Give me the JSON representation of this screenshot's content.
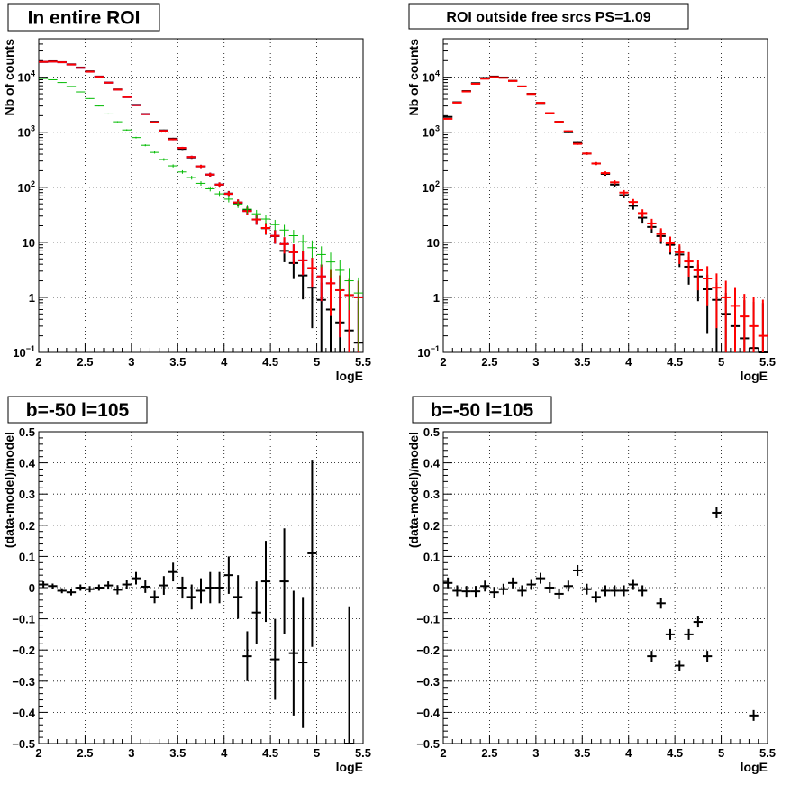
{
  "colors": {
    "data": "#000000",
    "model": "#ff0000",
    "model_blue": "#0000cc",
    "component": "#00bb00",
    "grid": "#000000",
    "background": "#ffffff"
  },
  "chart_data": [
    {
      "type": "scatter",
      "title": "In entire ROI",
      "xlabel": "logE",
      "ylabel": "Nb of counts",
      "xlim": [
        2,
        5.5
      ],
      "ylim": [
        0.1,
        50000
      ],
      "yscale": "log",
      "grid": true,
      "x_ticks": [
        "2",
        "2.5",
        "3",
        "3.5",
        "4",
        "4.5",
        "5",
        "5.5"
      ],
      "y_ticks": [
        "10⁻¹",
        "1",
        "10",
        "10²",
        "10³",
        "10⁴"
      ],
      "series": [
        {
          "role": "data",
          "color": "#000000",
          "x": [
            2.05,
            2.15,
            2.25,
            2.35,
            2.45,
            2.55,
            2.65,
            2.75,
            2.85,
            2.95,
            3.05,
            3.15,
            3.25,
            3.35,
            3.45,
            3.55,
            3.65,
            3.75,
            3.85,
            3.95,
            4.05,
            4.15,
            4.25,
            4.35,
            4.45,
            4.55,
            4.65,
            4.75,
            4.85,
            4.95,
            5.05,
            5.15,
            5.25,
            5.35,
            5.45
          ],
          "y": [
            19000,
            19500,
            18800,
            17200,
            15000,
            12800,
            10300,
            8000,
            6000,
            4400,
            3150,
            2150,
            1550,
            1080,
            765,
            500,
            348,
            240,
            170,
            112,
            77,
            52,
            38,
            26,
            18,
            13,
            7,
            4.2,
            2.5,
            1.5,
            0.9,
            0.6,
            0.35,
            0.25,
            0.15
          ]
        },
        {
          "role": "model_blue",
          "color": "#0000cc",
          "x": [
            2.05,
            2.15,
            2.25,
            2.35,
            2.45,
            2.55,
            2.65,
            2.75,
            2.85,
            2.95,
            3.05,
            3.15,
            3.25,
            3.35,
            3.45,
            3.55,
            3.65,
            3.75,
            3.85,
            3.95,
            4.05,
            4.15,
            4.25,
            4.35,
            4.45,
            4.55,
            4.65,
            4.75,
            4.85,
            4.95,
            5.05,
            5.15,
            5.25,
            5.35,
            5.45
          ],
          "y": [
            19000,
            19200,
            18700,
            17000,
            14800,
            12600,
            10200,
            7950,
            5950,
            4350,
            3100,
            2130,
            1520,
            1060,
            745,
            520,
            355,
            240,
            170,
            112,
            76,
            53,
            37,
            26,
            18.2,
            13.1,
            9.3,
            6.6,
            4.7,
            3.4,
            2.4,
            1.8,
            1.35,
            1.1,
            1.0
          ]
        },
        {
          "role": "model",
          "color": "#ff0000",
          "x": [
            2.05,
            2.15,
            2.25,
            2.35,
            2.45,
            2.55,
            2.65,
            2.75,
            2.85,
            2.95,
            3.05,
            3.15,
            3.25,
            3.35,
            3.45,
            3.55,
            3.65,
            3.75,
            3.85,
            3.95,
            4.05,
            4.15,
            4.25,
            4.35,
            4.45,
            4.55,
            4.65,
            4.75,
            4.85,
            4.95,
            5.05,
            5.15,
            5.25,
            5.35,
            5.45
          ],
          "y": [
            19000,
            19200,
            18700,
            17000,
            14800,
            12600,
            10200,
            7950,
            5950,
            4350,
            3100,
            2130,
            1520,
            1060,
            745,
            520,
            355,
            240,
            170,
            112,
            76,
            53,
            37,
            26,
            18.2,
            13.1,
            9.3,
            6.6,
            4.7,
            3.4,
            2.4,
            1.8,
            1.35,
            1.1,
            1.0
          ]
        },
        {
          "role": "component",
          "color": "#00bb00",
          "x": [
            2.05,
            2.15,
            2.25,
            2.35,
            2.45,
            2.55,
            2.65,
            2.75,
            2.85,
            2.95,
            3.05,
            3.15,
            3.25,
            3.35,
            3.45,
            3.55,
            3.65,
            3.75,
            3.85,
            3.95,
            4.05,
            4.15,
            4.25,
            4.35,
            4.45,
            4.55,
            4.65,
            4.75,
            4.85,
            4.95,
            5.05,
            5.15,
            5.25,
            5.35,
            5.45
          ],
          "y": [
            9500,
            9000,
            8000,
            6800,
            5400,
            4100,
            3000,
            2150,
            1550,
            1100,
            800,
            580,
            430,
            320,
            245,
            190,
            150,
            118,
            94,
            76,
            61,
            49,
            40,
            33,
            26.5,
            21,
            16.7,
            13.2,
            10.3,
            8,
            6,
            4.4,
            3.1,
            2,
            1.2
          ]
        }
      ]
    },
    {
      "type": "scatter",
      "title": "ROI outside free srcs PS=1.09",
      "xlabel": "logE",
      "ylabel": "Nb of counts",
      "xlim": [
        2,
        5.5
      ],
      "ylim": [
        0.1,
        50000
      ],
      "yscale": "log",
      "grid": true,
      "x_ticks": [
        "2",
        "2.5",
        "3",
        "3.5",
        "4",
        "4.5",
        "5",
        "5.5"
      ],
      "y_ticks": [
        "10⁻¹",
        "1",
        "10",
        "10²",
        "10³",
        "10⁴"
      ],
      "series": [
        {
          "role": "data",
          "color": "#000000",
          "x": [
            2.05,
            2.15,
            2.25,
            2.35,
            2.45,
            2.55,
            2.65,
            2.75,
            2.85,
            2.95,
            3.05,
            3.15,
            3.25,
            3.35,
            3.45,
            3.55,
            3.65,
            3.75,
            3.85,
            3.95,
            4.05,
            4.15,
            4.25,
            4.35,
            4.45,
            4.55,
            4.65,
            4.75,
            4.85,
            4.95,
            5.05,
            5.15,
            5.25,
            5.35,
            5.45
          ],
          "y": [
            1900,
            3500,
            5600,
            7800,
            9700,
            10300,
            9900,
            8600,
            6800,
            5000,
            3400,
            2200,
            1550,
            1000,
            640,
            410,
            270,
            175,
            112,
            72,
            46,
            28,
            19,
            13,
            9,
            6,
            3.6,
            2.4,
            1.4,
            0.9,
            0.5,
            0.3,
            0.18,
            0.12,
            0.08
          ]
        },
        {
          "role": "model",
          "color": "#ff0000",
          "x": [
            2.05,
            2.15,
            2.25,
            2.35,
            2.45,
            2.55,
            2.65,
            2.75,
            2.85,
            2.95,
            3.05,
            3.15,
            3.25,
            3.35,
            3.45,
            3.55,
            3.65,
            3.75,
            3.85,
            3.95,
            4.05,
            4.15,
            4.25,
            4.35,
            4.45,
            4.55,
            4.65,
            4.75,
            4.85,
            4.95,
            5.05,
            5.15,
            5.25,
            5.35,
            5.45
          ],
          "y": [
            1750,
            3450,
            5500,
            7600,
            9400,
            10100,
            9750,
            8550,
            6800,
            4970,
            3420,
            2230,
            1550,
            1045,
            615,
            410,
            270,
            181,
            123,
            80,
            54,
            34,
            22,
            14.2,
            9.6,
            6.6,
            4.5,
            3.1,
            2.2,
            1.5,
            1.0,
            0.7,
            0.45,
            0.3,
            0.2
          ]
        }
      ]
    },
    {
      "type": "scatter",
      "title": "b=-50 l=105",
      "xlabel": "logE",
      "ylabel": "(data-model)/model",
      "xlim": [
        2,
        5.5
      ],
      "ylim": [
        -0.5,
        0.5
      ],
      "grid": true,
      "x_ticks": [
        "2",
        "2.5",
        "3",
        "3.5",
        "4",
        "4.5",
        "5",
        "5.5"
      ],
      "y_ticks": [
        "−0.5",
        "−0.4",
        "−0.3",
        "−0.2",
        "−0.1",
        "0",
        "0.1",
        "0.2",
        "0.3",
        "0.4",
        "0.5"
      ],
      "series": [
        {
          "role": "data",
          "color": "#000000",
          "x": [
            2.05,
            2.15,
            2.25,
            2.35,
            2.45,
            2.55,
            2.65,
            2.75,
            2.85,
            2.95,
            3.05,
            3.15,
            3.25,
            3.35,
            3.45,
            3.55,
            3.65,
            3.75,
            3.85,
            3.95,
            4.05,
            4.15,
            4.25,
            4.35,
            4.45,
            4.55,
            4.65,
            4.75,
            4.85,
            4.95,
            5.35
          ],
          "y": [
            0.01,
            0.005,
            -0.01,
            -0.015,
            0.0,
            -0.005,
            0.0,
            0.007,
            -0.007,
            0.01,
            0.03,
            0.003,
            -0.03,
            0.007,
            0.05,
            0.0,
            -0.03,
            -0.01,
            0.0,
            0.0,
            0.04,
            -0.03,
            -0.22,
            -0.08,
            0.02,
            -0.23,
            0.02,
            -0.21,
            -0.24,
            0.11,
            -0.5
          ],
          "yerr": [
            0.01,
            0.008,
            0.008,
            0.01,
            0.01,
            0.01,
            0.01,
            0.013,
            0.015,
            0.015,
            0.02,
            0.02,
            0.02,
            0.03,
            0.03,
            0.035,
            0.04,
            0.04,
            0.05,
            0.05,
            0.06,
            0.07,
            0.08,
            0.1,
            0.13,
            0.13,
            0.17,
            0.2,
            0.21,
            0.3,
            0.44
          ]
        }
      ]
    },
    {
      "type": "scatter",
      "title": "b=-50 l=105",
      "xlabel": "logE",
      "ylabel": "(data-model)/model",
      "xlim": [
        2,
        5.5
      ],
      "ylim": [
        -0.5,
        0.5
      ],
      "grid": true,
      "x_ticks": [
        "2",
        "2.5",
        "3",
        "3.5",
        "4",
        "4.5",
        "5",
        "5.5"
      ],
      "y_ticks": [
        "−0.5",
        "−0.4",
        "−0.3",
        "−0.2",
        "−0.1",
        "0",
        "0.1",
        "0.2",
        "0.3",
        "0.4",
        "0.5"
      ],
      "series": [
        {
          "role": "data",
          "color": "#000000",
          "x": [
            2.05,
            2.15,
            2.25,
            2.35,
            2.45,
            2.55,
            2.65,
            2.75,
            2.85,
            2.95,
            3.05,
            3.15,
            3.25,
            3.35,
            3.45,
            3.55,
            3.65,
            3.75,
            3.85,
            3.95,
            4.05,
            4.15,
            4.25,
            4.35,
            4.45,
            4.55,
            4.65,
            4.75,
            4.85,
            4.95,
            5.35
          ],
          "y": [
            0.015,
            -0.01,
            -0.012,
            -0.012,
            0.005,
            -0.015,
            -0.005,
            0.015,
            -0.01,
            0.01,
            0.03,
            0.0,
            -0.02,
            0.005,
            0.055,
            -0.005,
            -0.03,
            -0.01,
            -0.01,
            -0.01,
            0.01,
            -0.01,
            -0.22,
            -0.05,
            -0.15,
            -0.25,
            -0.15,
            -0.11,
            -0.22,
            0.24,
            -0.41
          ]
        }
      ]
    }
  ]
}
